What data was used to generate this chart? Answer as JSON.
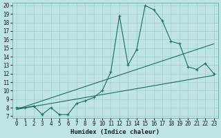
{
  "xlabel": "Humidex (Indice chaleur)",
  "bg_color": "#c0e4e4",
  "line_color": "#1a6b5a",
  "xlim": [
    -0.5,
    23.5
  ],
  "ylim": [
    6.8,
    20.3
  ],
  "xticks": [
    0,
    1,
    2,
    3,
    4,
    5,
    6,
    7,
    8,
    9,
    10,
    11,
    12,
    13,
    14,
    15,
    16,
    17,
    18,
    19,
    20,
    21,
    22,
    23
  ],
  "yticks": [
    7,
    8,
    9,
    10,
    11,
    12,
    13,
    14,
    15,
    16,
    17,
    18,
    19,
    20
  ],
  "curve1_x": [
    0,
    1,
    2,
    3,
    4,
    5,
    6,
    7,
    8,
    9,
    10,
    11,
    12,
    13,
    14,
    15,
    16,
    17,
    18,
    19,
    20,
    21,
    22,
    23
  ],
  "curve1_y": [
    8.0,
    8.0,
    8.2,
    7.2,
    8.0,
    7.2,
    7.2,
    8.5,
    8.8,
    9.2,
    10.0,
    12.2,
    18.8,
    13.0,
    14.8,
    20.0,
    19.5,
    18.2,
    15.8,
    15.5,
    12.8,
    12.5,
    13.2,
    12.0
  ],
  "curve2_x": [
    0,
    23
  ],
  "curve2_y": [
    7.8,
    15.5
  ],
  "curve3_x": [
    0,
    23
  ],
  "curve3_y": [
    7.8,
    11.8
  ],
  "grid_color": "#9ecece",
  "tick_fontsize": 5.5,
  "label_fontsize": 6.5
}
